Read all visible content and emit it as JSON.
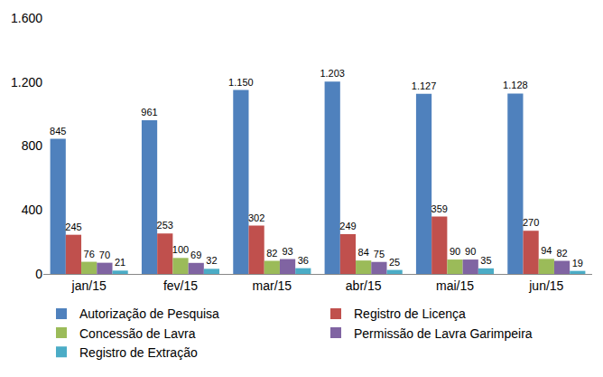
{
  "chart_data": {
    "type": "bar",
    "categories": [
      "jan/15",
      "fev/15",
      "mar/15",
      "abr/15",
      "mai/15",
      "jun/15"
    ],
    "series": [
      {
        "name": "Autorização de Pesquisa",
        "color": "#4F81BD",
        "values": [
          845,
          961,
          1150,
          1203,
          1127,
          1128
        ],
        "value_labels": [
          "845",
          "961",
          "1.150",
          "1.203",
          "1.127",
          "1.128"
        ]
      },
      {
        "name": "Registro de Licença",
        "color": "#C0504D",
        "values": [
          245,
          253,
          302,
          249,
          359,
          270
        ]
      },
      {
        "name": "Concessão de Lavra",
        "color": "#9BBB59",
        "values": [
          76,
          100,
          82,
          84,
          90,
          94
        ]
      },
      {
        "name": "Permissão de Lavra Garimpeira",
        "color": "#8064A2",
        "values": [
          70,
          69,
          93,
          75,
          90,
          82
        ]
      },
      {
        "name": "Registro de Extração",
        "color": "#4BACC6",
        "values": [
          21,
          32,
          36,
          25,
          35,
          19
        ]
      }
    ],
    "ylim": [
      0,
      1600
    ],
    "yticks": [
      0,
      400,
      800,
      {
        "value": 1200,
        "label": "1.200"
      },
      {
        "value": 1600,
        "label": "1.600"
      }
    ],
    "grid": false,
    "data_labels": true,
    "legend": "bottom"
  }
}
